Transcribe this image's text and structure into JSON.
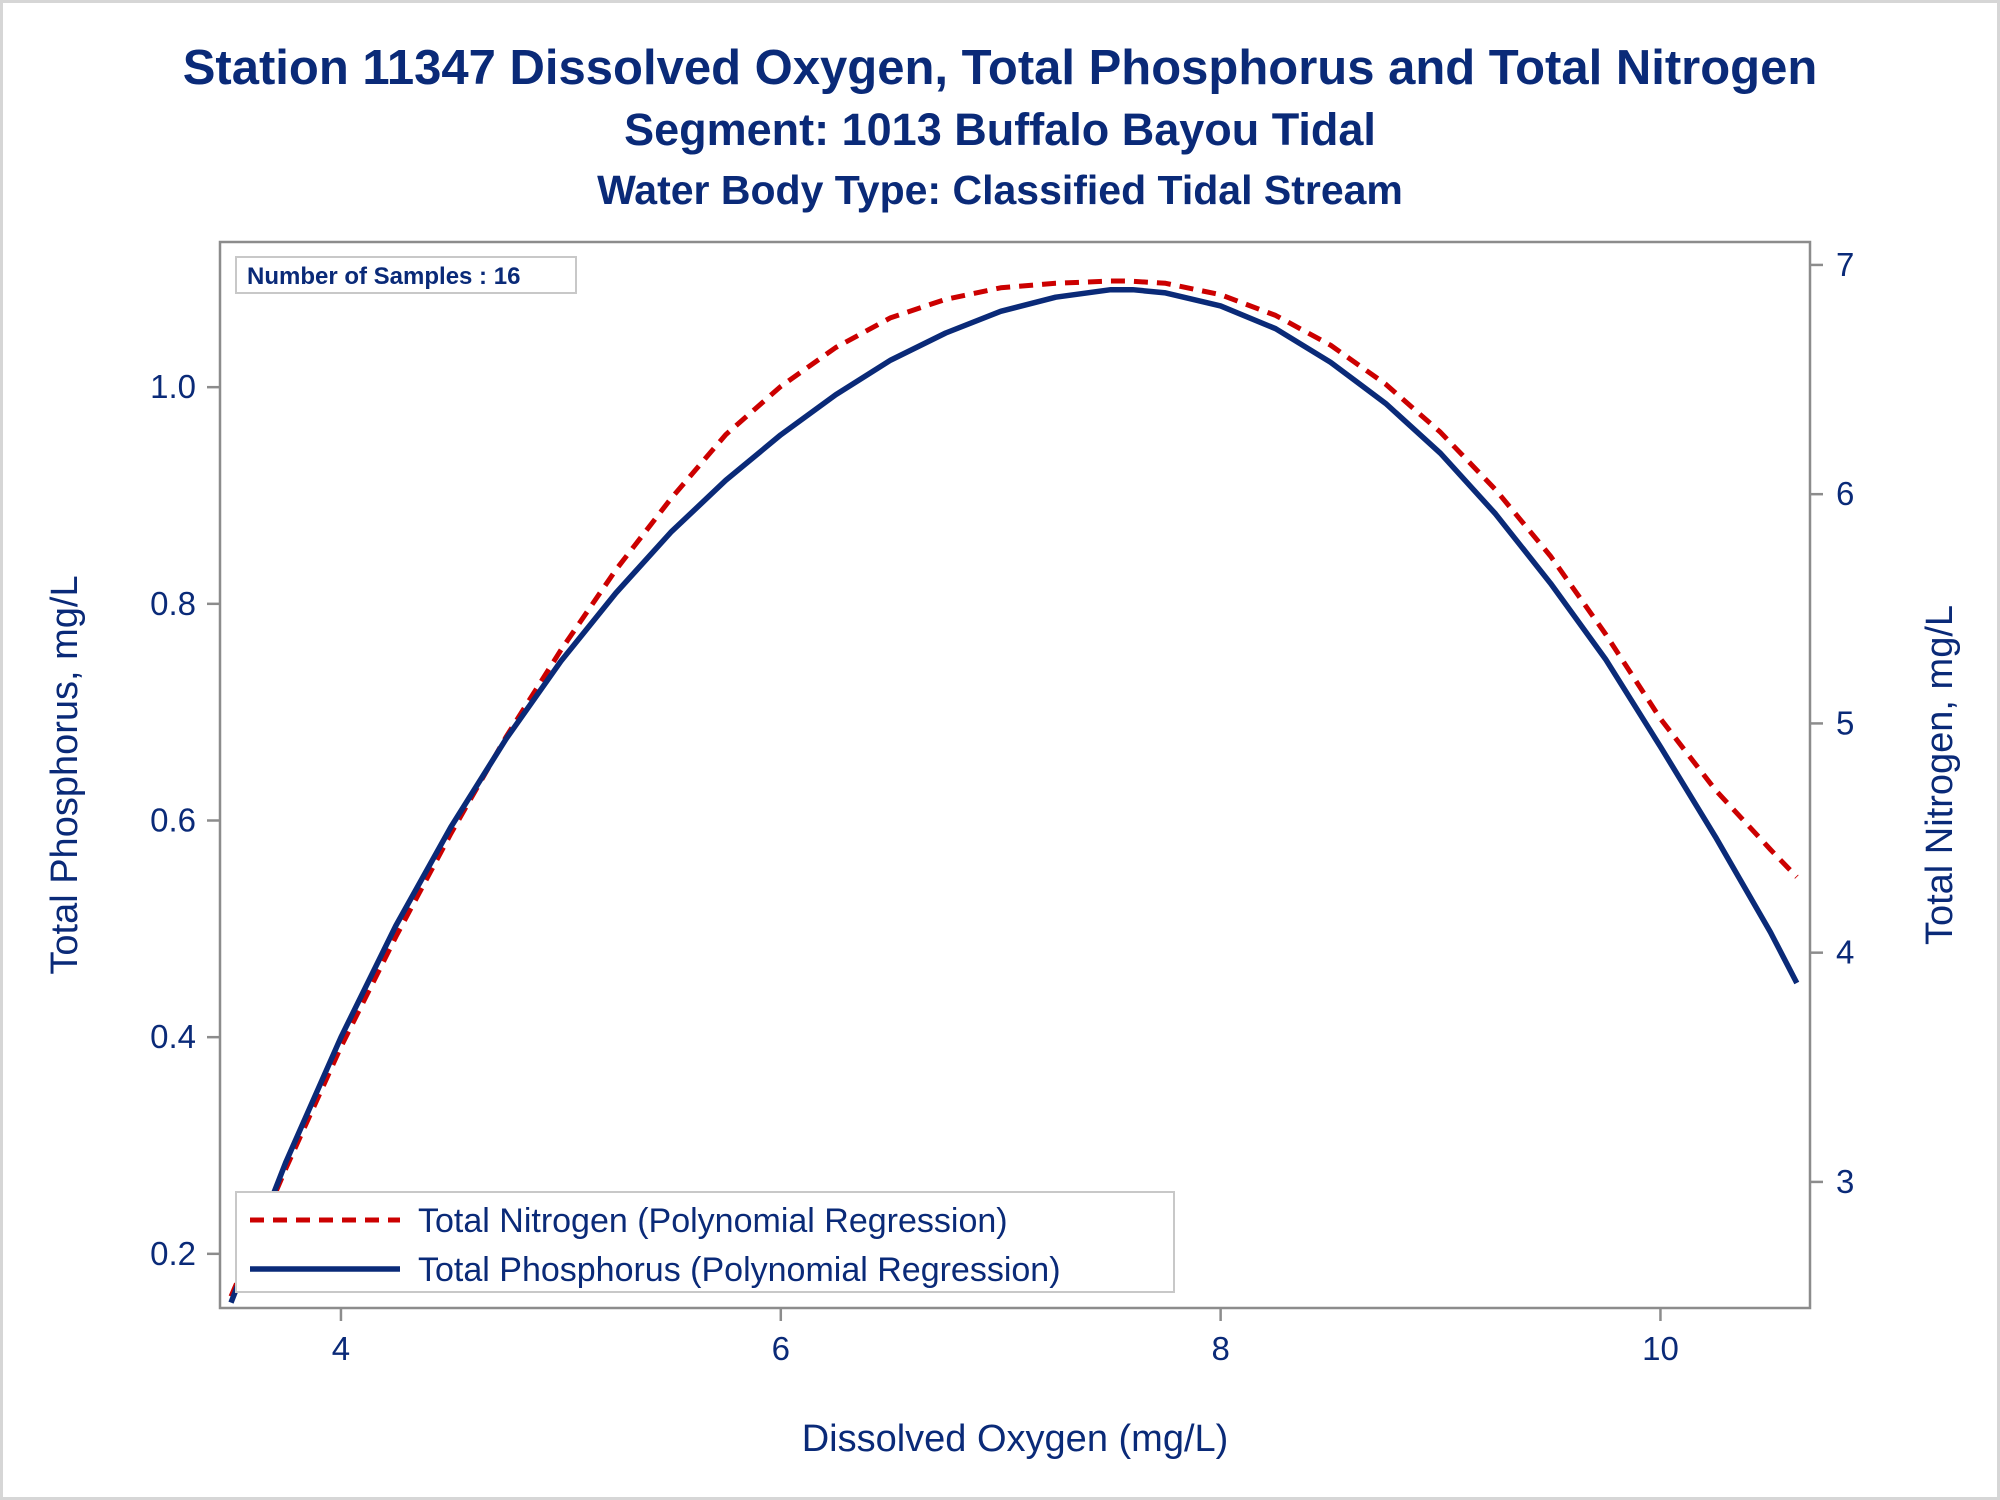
{
  "chart_data": {
    "type": "line",
    "title": "Station 11347  Dissolved Oxygen, Total Phosphorus and Total Nitrogen",
    "subtitle": "Segment: 1013  Buffalo Bayou Tidal",
    "subtitle2": "Water Body Type: Classified Tidal Stream",
    "xlabel": "Dissolved Oxygen (mg/L)",
    "ylabel": "Total Phosphorus, mg/L",
    "y2label": "Total Nitrogen, mg/L",
    "xlim": [
      3.45,
      10.68
    ],
    "ylim": [
      0.15,
      1.134
    ],
    "y2lim": [
      2.45,
      7.1
    ],
    "xticks": [
      4,
      6,
      8,
      10
    ],
    "yticks": [
      0.2,
      0.4,
      0.6,
      0.8,
      1.0
    ],
    "y2ticks": [
      3,
      4,
      5,
      6,
      7
    ],
    "inset_label": "Number of Samples : 16",
    "grid": false,
    "legend_position": "bottom-left",
    "series": [
      {
        "name": "Total Nitrogen (Polynomial Regression)",
        "axis": "right",
        "color": "#cc0000",
        "style": "dashed",
        "x": [
          3.5,
          3.75,
          4.0,
          4.25,
          4.5,
          4.75,
          5.0,
          5.25,
          5.5,
          5.75,
          6.0,
          6.25,
          6.5,
          6.75,
          7.0,
          7.25,
          7.5,
          7.58,
          7.75,
          8.0,
          8.25,
          8.5,
          8.75,
          9.0,
          9.25,
          9.5,
          9.75,
          10.0,
          10.25,
          10.5,
          10.62
        ],
        "y": [
          2.5,
          3.06,
          3.59,
          4.07,
          4.52,
          4.94,
          5.32,
          5.67,
          5.98,
          6.26,
          6.47,
          6.64,
          6.77,
          6.85,
          6.9,
          6.92,
          6.93,
          6.93,
          6.92,
          6.87,
          6.78,
          6.65,
          6.48,
          6.27,
          6.02,
          5.73,
          5.39,
          5.02,
          4.71,
          4.45,
          4.33
        ]
      },
      {
        "name": "Total Phosphorus (Polynomial Regression)",
        "axis": "left",
        "color": "#0a2a78",
        "style": "solid",
        "x": [
          3.5,
          3.75,
          4.0,
          4.25,
          4.5,
          4.75,
          5.0,
          5.25,
          5.5,
          5.75,
          6.0,
          6.25,
          6.5,
          6.75,
          7.0,
          7.25,
          7.5,
          7.6,
          7.75,
          8.0,
          8.25,
          8.5,
          8.75,
          9.0,
          9.25,
          9.5,
          9.75,
          10.0,
          10.25,
          10.5,
          10.62
        ],
        "y": [
          0.155,
          0.285,
          0.4,
          0.503,
          0.594,
          0.675,
          0.747,
          0.81,
          0.866,
          0.914,
          0.956,
          0.993,
          1.025,
          1.05,
          1.07,
          1.083,
          1.09,
          1.09,
          1.087,
          1.075,
          1.054,
          1.023,
          0.985,
          0.939,
          0.883,
          0.819,
          0.749,
          0.668,
          0.585,
          0.497,
          0.45
        ]
      }
    ]
  }
}
